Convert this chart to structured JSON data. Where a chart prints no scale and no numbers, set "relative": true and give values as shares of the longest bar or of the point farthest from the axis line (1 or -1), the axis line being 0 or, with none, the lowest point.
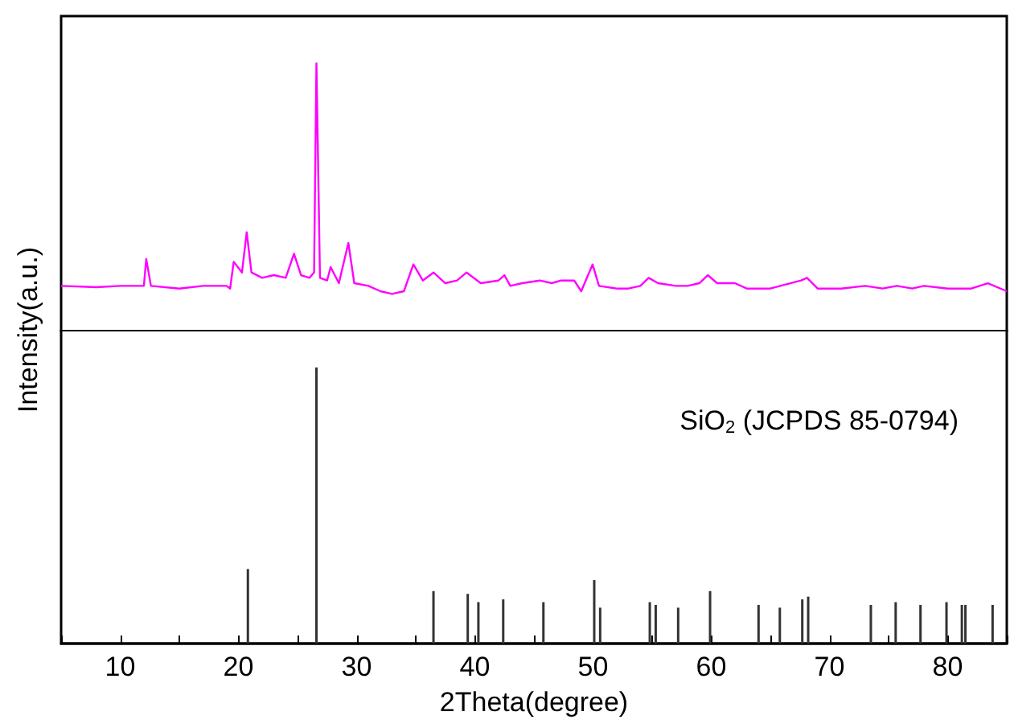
{
  "chart_data": [
    {
      "type": "line",
      "relative": true,
      "ylabel": "Intensity(a.u.)",
      "marker": "none",
      "tick_labels": false,
      "xlim": [
        5,
        85
      ],
      "xticks": [
        {
          "value": 5,
          "label": null
        },
        10,
        {
          "value": 15,
          "label": null
        },
        20,
        {
          "value": 25,
          "label": null
        },
        30,
        {
          "value": 35,
          "label": null
        },
        40,
        {
          "value": 45,
          "label": null
        },
        50,
        {
          "value": 55,
          "label": null
        },
        60,
        {
          "value": 65,
          "label": null
        },
        70,
        {
          "value": 75,
          "label": null
        },
        80,
        {
          "value": 85,
          "label": null
        }
      ],
      "x": [
        5,
        8,
        10,
        12,
        12.2,
        12.6,
        15,
        17,
        19,
        19.3,
        19.6,
        20.3,
        20.7,
        21.1,
        22,
        23,
        24,
        24.7,
        25.3,
        26,
        26.4,
        26.6,
        26.9,
        27.5,
        27.8,
        28.5,
        29.3,
        29.8,
        31,
        32,
        33,
        34,
        34.8,
        35.6,
        36.5,
        37.5,
        38.5,
        39.3,
        40.5,
        42,
        42.5,
        43,
        44,
        45.5,
        46.5,
        47.3,
        48.4,
        49,
        49.96,
        50.5,
        52,
        53,
        54,
        54.7,
        55.5,
        57,
        58,
        59,
        59.7,
        60.5,
        62,
        63,
        65,
        67.6,
        68.1,
        69,
        71,
        73,
        74.5,
        75.7,
        77,
        78,
        80,
        82,
        83.4,
        85
      ],
      "series": [
        {
          "color": "#ff00ff",
          "values": [
            0.17,
            0.165,
            0.17,
            0.17,
            0.27,
            0.17,
            0.16,
            0.17,
            0.17,
            0.16,
            0.26,
            0.22,
            0.37,
            0.22,
            0.2,
            0.21,
            0.2,
            0.29,
            0.21,
            0.2,
            0.22,
            1,
            0.2,
            0.19,
            0.24,
            0.18,
            0.33,
            0.18,
            0.17,
            0.15,
            0.14,
            0.15,
            0.25,
            0.19,
            0.22,
            0.18,
            0.19,
            0.22,
            0.18,
            0.19,
            0.21,
            0.17,
            0.18,
            0.19,
            0.18,
            0.19,
            0.19,
            0.15,
            0.25,
            0.17,
            0.16,
            0.16,
            0.17,
            0.2,
            0.18,
            0.17,
            0.17,
            0.18,
            0.21,
            0.18,
            0.18,
            0.16,
            0.16,
            0.19,
            0.2,
            0.16,
            0.16,
            0.17,
            0.16,
            0.17,
            0.16,
            0.17,
            0.16,
            0.16,
            0.18,
            0.15
          ]
        }
      ]
    },
    {
      "type": "bar",
      "relative": true,
      "xlabel": "2Theta(degree)",
      "tick_labels": "x",
      "xlim": [
        5,
        85
      ],
      "xticks": [
        {
          "value": 5,
          "label": null
        },
        10,
        {
          "value": 15,
          "label": null
        },
        20,
        {
          "value": 25,
          "label": null
        },
        30,
        {
          "value": 35,
          "label": null
        },
        40,
        {
          "value": 45,
          "label": null
        },
        50,
        {
          "value": 55,
          "label": null
        },
        60,
        {
          "value": 65,
          "label": null
        },
        70,
        {
          "value": 75,
          "label": null
        },
        80,
        {
          "value": 85,
          "label": null
        }
      ],
      "annotations": [
        "SiO$_{2}$ (JCPDS 85-0794)"
      ],
      "x": [
        20.8,
        26.6,
        36.5,
        39.4,
        40.3,
        42.4,
        45.8,
        50.1,
        50.6,
        54.8,
        55.3,
        57.2,
        59.9,
        64,
        65.8,
        67.7,
        68.2,
        73.5,
        75.6,
        77.7,
        79.9,
        81.2,
        81.5,
        83.8
      ],
      "series": [
        {
          "color": "#333333",
          "values": [
            0.27,
            1,
            0.19,
            0.18,
            0.15,
            0.16,
            0.15,
            0.23,
            0.13,
            0.15,
            0.14,
            0.13,
            0.19,
            0.14,
            0.13,
            0.16,
            0.17,
            0.14,
            0.15,
            0.14,
            0.15,
            0.14,
            0.14,
            0.14
          ]
        }
      ]
    }
  ]
}
